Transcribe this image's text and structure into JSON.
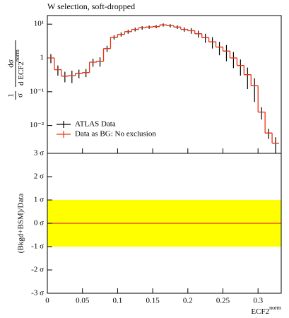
{
  "chart_data": [
    {
      "type": "histogram",
      "title": "W selection, soft-dropped",
      "y_label": {
        "prefix_num": "1",
        "prefix_den": "σ",
        "num": "dσ",
        "den": "d ECF2",
        "den_sup": "norm"
      },
      "log_y": true,
      "ylim": [
        0.0015,
        18
      ],
      "yticks": [
        {
          "value": 0.01,
          "label": "10⁻²"
        },
        {
          "value": 0.1,
          "label": "10⁻¹"
        },
        1,
        {
          "value": 10,
          "label": "10¹"
        }
      ],
      "xlim": [
        0,
        0.333
      ],
      "bins": [
        0,
        0.01,
        0.02,
        0.03,
        0.04,
        0.05,
        0.06,
        0.07,
        0.08,
        0.09,
        0.1,
        0.11,
        0.12,
        0.13,
        0.14,
        0.15,
        0.16,
        0.17,
        0.18,
        0.19,
        0.2,
        0.21,
        0.22,
        0.23,
        0.24,
        0.25,
        0.26,
        0.27,
        0.28,
        0.29,
        0.3,
        0.31,
        0.32,
        0.33
      ],
      "legend": "lower left",
      "series": [
        {
          "name": "ATLAS Data",
          "color": "#000000",
          "style": "points",
          "values": [
            1.0,
            0.45,
            0.29,
            0.3,
            0.35,
            0.37,
            0.75,
            0.8,
            1.9,
            4.1,
            5,
            6,
            7,
            7.8,
            8.2,
            8.5,
            9.5,
            9,
            8.2,
            7,
            6.4,
            5.2,
            4,
            3,
            2.1,
            1.6,
            1,
            0.6,
            0.32,
            0.15,
            0.025,
            0.006,
            0.003
          ],
          "errors": [
            0.3,
            0.15,
            0.1,
            0.12,
            0.1,
            0.1,
            0.2,
            0.25,
            0.4,
            0.6,
            0.7,
            0.8,
            0.9,
            0.9,
            0.9,
            0.9,
            1,
            1,
            1,
            1,
            1.2,
            1.2,
            1.2,
            1.1,
            0.9,
            0.8,
            0.5,
            0.3,
            0.2,
            0.1,
            0.01,
            0.002,
            0.0015
          ]
        },
        {
          "name": "Data as BG: No exclusion",
          "color": "#ee3311",
          "style": "step",
          "values": [
            1.0,
            0.45,
            0.29,
            0.3,
            0.35,
            0.37,
            0.75,
            0.8,
            1.9,
            4.1,
            5,
            6,
            7,
            7.8,
            8.2,
            8.5,
            9.5,
            9,
            8.2,
            7,
            6.4,
            5.2,
            4,
            3,
            2.1,
            1.6,
            1,
            0.6,
            0.32,
            0.15,
            0.025,
            0.006,
            0.003
          ]
        }
      ]
    },
    {
      "type": "ratio",
      "y_label": "(Bkgd+BSM)/Data",
      "x_label": [
        "ECF2",
        "norm"
      ],
      "ylim": [
        -3,
        3
      ],
      "yticks": [
        {
          "value": -3,
          "label": "-3 σ"
        },
        {
          "value": -2,
          "label": "-2 σ"
        },
        {
          "value": -1,
          "label": "-1 σ"
        },
        {
          "value": 0,
          "label": "0 σ"
        },
        {
          "value": 1,
          "label": "1 σ"
        },
        {
          "value": 2,
          "label": "2 σ"
        },
        {
          "value": 3,
          "label": "3 σ"
        }
      ],
      "xlim": [
        0,
        0.333
      ],
      "xticks": [
        0,
        0.05,
        0.1,
        0.15,
        0.2,
        0.25,
        0.3
      ],
      "band": [
        -1,
        1
      ],
      "band_color": "#ffff00",
      "line_value": 0,
      "line_color": "#ee3311"
    }
  ]
}
